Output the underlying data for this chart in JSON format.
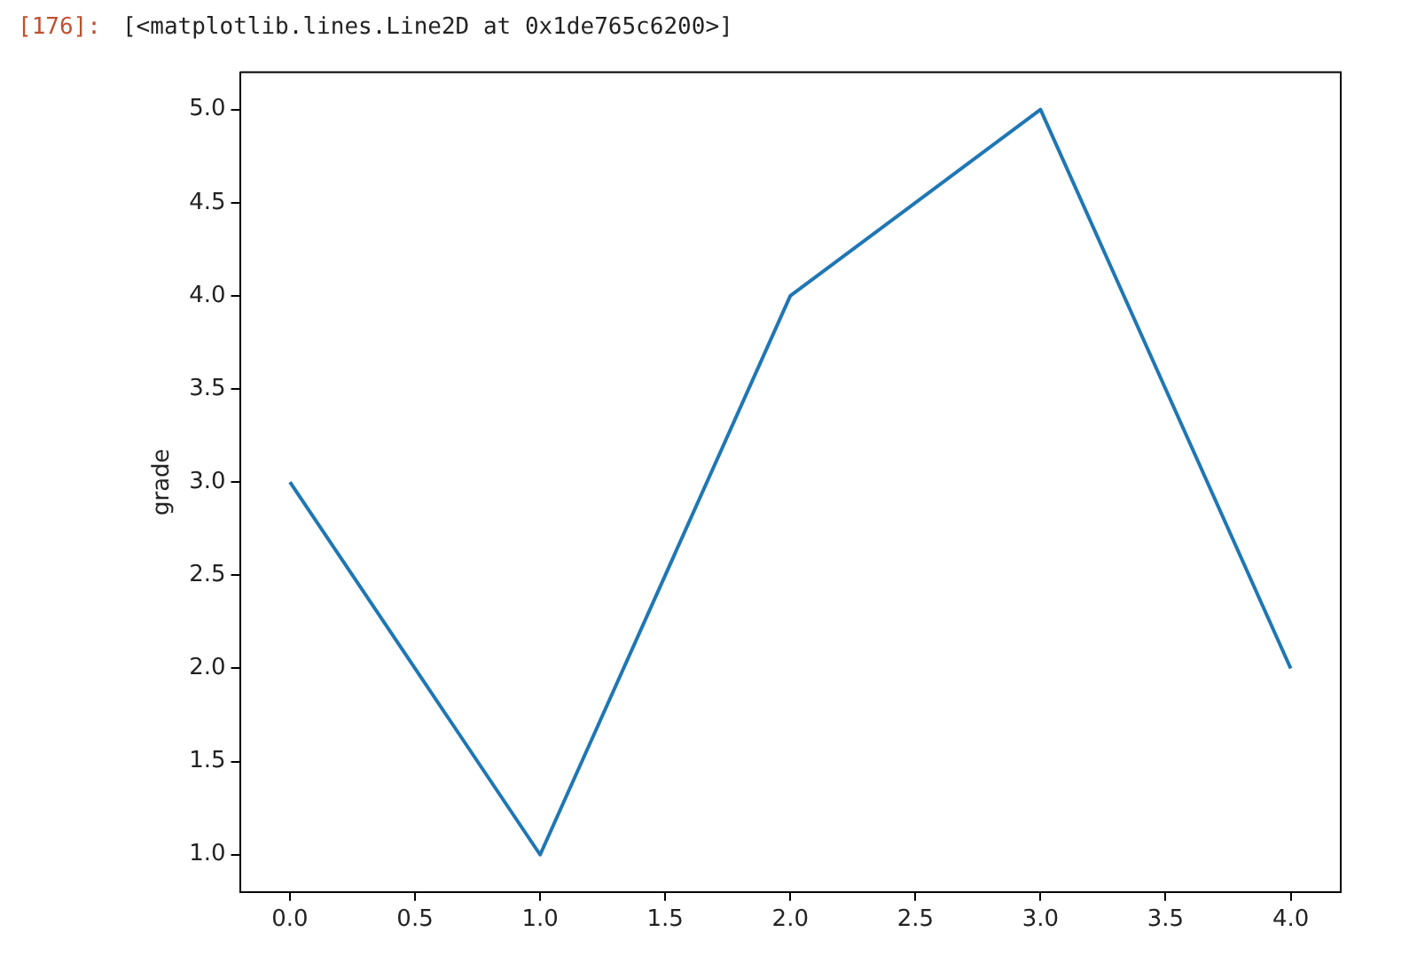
{
  "chart_data": {
    "type": "line",
    "ylabel": "grade",
    "annotations": [
      "[176]:",
      "[<matplotlib.lines.Line2D at 0x1de765c6200>]"
    ],
    "x": [
      0,
      1,
      2,
      3,
      4
    ],
    "series": [
      {
        "color": "#1f77b4",
        "values": [
          3,
          1,
          4,
          5,
          2
        ]
      }
    ],
    "xlim": [
      -0.2,
      4.2
    ],
    "xticks": [
      {
        "value": 0,
        "label": "0.0"
      },
      {
        "value": 0.5,
        "label": "0.5"
      },
      {
        "value": 1,
        "label": "1.0"
      },
      {
        "value": 1.5,
        "label": "1.5"
      },
      {
        "value": 2,
        "label": "2.0"
      },
      {
        "value": 2.5,
        "label": "2.5"
      },
      {
        "value": 3,
        "label": "3.0"
      },
      {
        "value": 3.5,
        "label": "3.5"
      },
      {
        "value": 4,
        "label": "4.0"
      }
    ],
    "ylim": [
      0.8,
      5.2
    ],
    "yticks": [
      {
        "value": 1,
        "label": "1.0"
      },
      {
        "value": 1.5,
        "label": "1.5"
      },
      {
        "value": 2,
        "label": "2.0"
      },
      {
        "value": 2.5,
        "label": "2.5"
      },
      {
        "value": 3,
        "label": "3.0"
      },
      {
        "value": 3.5,
        "label": "3.5"
      },
      {
        "value": 4,
        "label": "4.0"
      },
      {
        "value": 4.5,
        "label": "4.5"
      },
      {
        "value": 5,
        "label": "5.0"
      }
    ],
    "grid": false,
    "legend": false,
    "marker": "none",
    "line_style": "solid"
  }
}
